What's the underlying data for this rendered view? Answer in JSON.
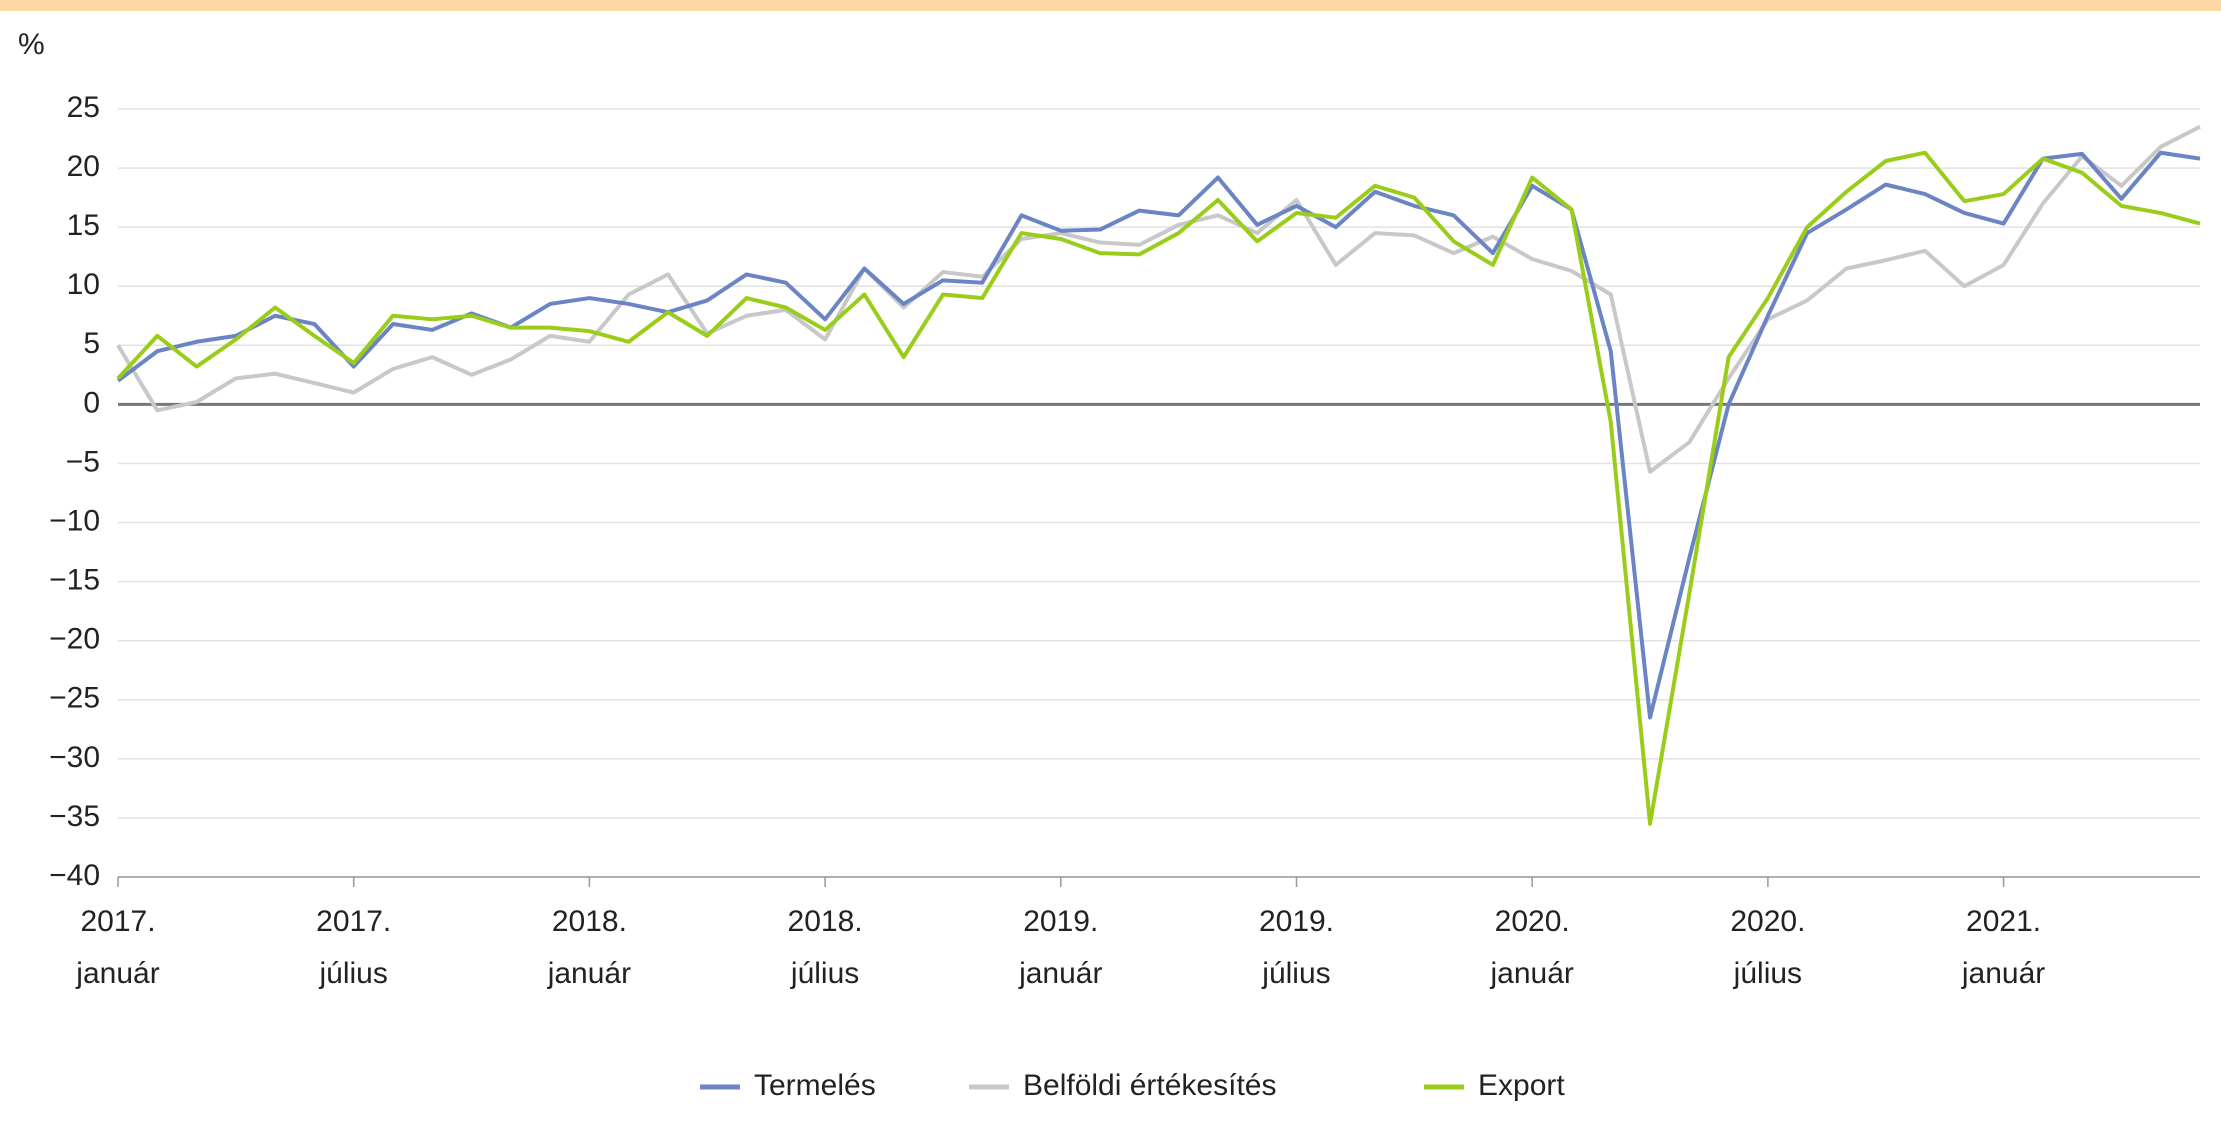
{
  "chart_data": {
    "type": "line",
    "y_label": "%",
    "categories": [
      "2017. január",
      null,
      null,
      null,
      null,
      null,
      "2017. július",
      null,
      null,
      null,
      null,
      null,
      "2018. január",
      null,
      null,
      null,
      null,
      null,
      "2018. július",
      null,
      null,
      null,
      null,
      null,
      "2019. január",
      null,
      null,
      null,
      null,
      null,
      "2019. július",
      null,
      null,
      null,
      null,
      null,
      "2020. január",
      null,
      null,
      null,
      null,
      null,
      "2020. július",
      null,
      null,
      null,
      null,
      null,
      "2021. január",
      null,
      null,
      null,
      null,
      null
    ],
    "series": [
      {
        "name": "Termelés",
        "color": "#6b84c4",
        "values": [
          2,
          4.5,
          5.3,
          5.8,
          7.5,
          6.8,
          3.2,
          6.8,
          6.3,
          7.7,
          6.5,
          8.5,
          9,
          8.5,
          7.8,
          8.8,
          11,
          10.3,
          7.2,
          11.5,
          8.5,
          10.5,
          10.3,
          16,
          14.7,
          14.8,
          16.4,
          16,
          19.2,
          15.2,
          16.8,
          15,
          18,
          16.8,
          16,
          12.8,
          18.5,
          16.5,
          4.5,
          -26.5,
          -13,
          0,
          7.5,
          14.5,
          16.5,
          18.6,
          17.8,
          16.2,
          15.3,
          20.8,
          21.2,
          17.4,
          21.3,
          20.8
        ]
      },
      {
        "name": "Belföldi értékesítés",
        "color": "#c8c8c8",
        "values": [
          5,
          -0.5,
          0.2,
          2.2,
          2.6,
          1.8,
          1,
          3,
          4,
          2.5,
          3.8,
          5.8,
          5.3,
          9.3,
          11,
          6,
          7.5,
          8,
          5.5,
          11.5,
          8.2,
          11.2,
          10.8,
          14,
          14.5,
          13.7,
          13.5,
          15.2,
          16,
          14.5,
          17.3,
          11.8,
          14.5,
          14.3,
          12.8,
          14.2,
          12.3,
          11.3,
          9.3,
          -5.7,
          -3.2,
          2.2,
          7.2,
          8.8,
          11.5,
          12.2,
          13,
          10,
          11.8,
          17,
          21,
          18.5,
          21.8,
          23.5
        ]
      },
      {
        "name": "Export",
        "color": "#9acd1a",
        "values": [
          2.2,
          5.8,
          3.2,
          5.5,
          8.2,
          5.8,
          3.5,
          7.5,
          7.2,
          7.5,
          6.5,
          6.5,
          6.2,
          5.3,
          7.8,
          5.8,
          9,
          8.2,
          6.3,
          9.3,
          4,
          9.3,
          9,
          14.5,
          14,
          12.8,
          12.7,
          14.5,
          17.3,
          13.8,
          16.2,
          15.8,
          18.5,
          17.5,
          13.8,
          11.8,
          19.2,
          16.5,
          -1.5,
          -35.5,
          -16,
          4,
          9,
          15,
          18,
          20.6,
          21.3,
          17.2,
          17.8,
          20.8,
          19.6,
          16.8,
          16.2,
          15.3
        ]
      }
    ],
    "ylim": [
      -40,
      25
    ],
    "yticks": [
      {
        "value": -40,
        "label": "−40"
      },
      {
        "value": -35,
        "label": "−35"
      },
      {
        "value": -30,
        "label": "−30"
      },
      {
        "value": -25,
        "label": "−25"
      },
      {
        "value": -20,
        "label": "−20"
      },
      {
        "value": -15,
        "label": "−15"
      },
      {
        "value": -10,
        "label": "−10"
      },
      {
        "value": -5,
        "label": "−5"
      },
      0,
      5,
      10,
      15,
      20,
      25
    ],
    "grid": true,
    "legend": "bottom"
  }
}
